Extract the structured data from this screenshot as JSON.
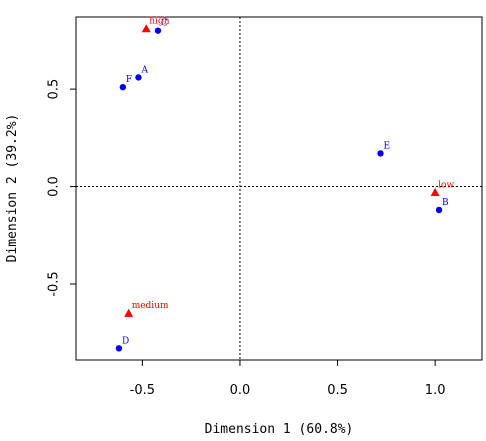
{
  "chart_data": {
    "type": "scatter",
    "xlabel": "Dimension 1 (60.8%)",
    "ylabel": "Dimension 2 (39.2%)",
    "xlim": [
      -0.84,
      1.24
    ],
    "ylim": [
      -0.89,
      0.87
    ],
    "x_ticks": [
      -0.5,
      0.0,
      0.5,
      1.0
    ],
    "y_ticks": [
      -0.5,
      0.0,
      0.5
    ],
    "x_tick_labels": [
      "-0.5",
      "0.0",
      "0.5",
      "1.0"
    ],
    "y_tick_labels": [
      "-0.5",
      "0.0",
      "0.5"
    ],
    "reference_lines": {
      "x": 0,
      "y": 0,
      "style": "dotted"
    },
    "grid": false,
    "series": [
      {
        "marker": "circle",
        "color": "#0000ff",
        "points": [
          {
            "label": "A",
            "x": -0.52,
            "y": 0.56
          },
          {
            "label": "B",
            "x": 1.02,
            "y": -0.12
          },
          {
            "label": "C",
            "x": -0.42,
            "y": 0.8
          },
          {
            "label": "D",
            "x": -0.62,
            "y": -0.83
          },
          {
            "label": "E",
            "x": 0.72,
            "y": 0.17
          },
          {
            "label": "F",
            "x": -0.6,
            "y": 0.51
          }
        ]
      },
      {
        "marker": "triangle",
        "color": "#ff0000",
        "points": [
          {
            "label": "high",
            "x": -0.48,
            "y": 0.81
          },
          {
            "label": "low",
            "x": 1.0,
            "y": -0.03
          },
          {
            "label": "medium",
            "x": -0.57,
            "y": -0.65
          }
        ]
      }
    ]
  }
}
